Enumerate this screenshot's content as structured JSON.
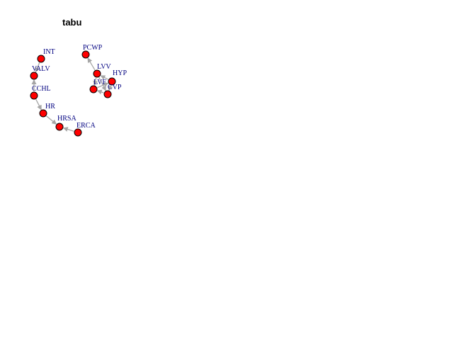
{
  "title": "tabu",
  "colors": {
    "node_fill": "#ff0000",
    "node_stroke": "#000000",
    "edge": "#a6a6a6",
    "label": "#000080"
  },
  "nodes": [
    {
      "id": "INT",
      "label": "INT"
    },
    {
      "id": "VALV",
      "label": "VALV"
    },
    {
      "id": "CCHL",
      "label": "CCHL"
    },
    {
      "id": "HR",
      "label": "HR"
    },
    {
      "id": "HRSA",
      "label": "HRSA"
    },
    {
      "id": "ERCA",
      "label": "ERCA"
    },
    {
      "id": "PCWP",
      "label": "PCWP"
    },
    {
      "id": "LVV",
      "label": "LVV"
    },
    {
      "id": "HYP",
      "label": "HYP"
    },
    {
      "id": "LVF",
      "label": "LVF"
    },
    {
      "id": "CVP",
      "label": "CVP"
    }
  ],
  "edges": [
    {
      "from": "INT",
      "to": "VALV"
    },
    {
      "from": "CCHL",
      "to": "VALV"
    },
    {
      "from": "CCHL",
      "to": "HR"
    },
    {
      "from": "HR",
      "to": "HRSA"
    },
    {
      "from": "ERCA",
      "to": "HRSA"
    },
    {
      "from": "LVV",
      "to": "PCWP"
    },
    {
      "from": "HYP",
      "to": "LVV"
    },
    {
      "from": "LVV",
      "to": "LVF"
    },
    {
      "from": "LVV",
      "to": "CVP"
    },
    {
      "from": "LVF",
      "to": "HYP"
    },
    {
      "from": "CVP",
      "to": "LVF"
    },
    {
      "from": "HYP",
      "to": "CVP"
    }
  ]
}
